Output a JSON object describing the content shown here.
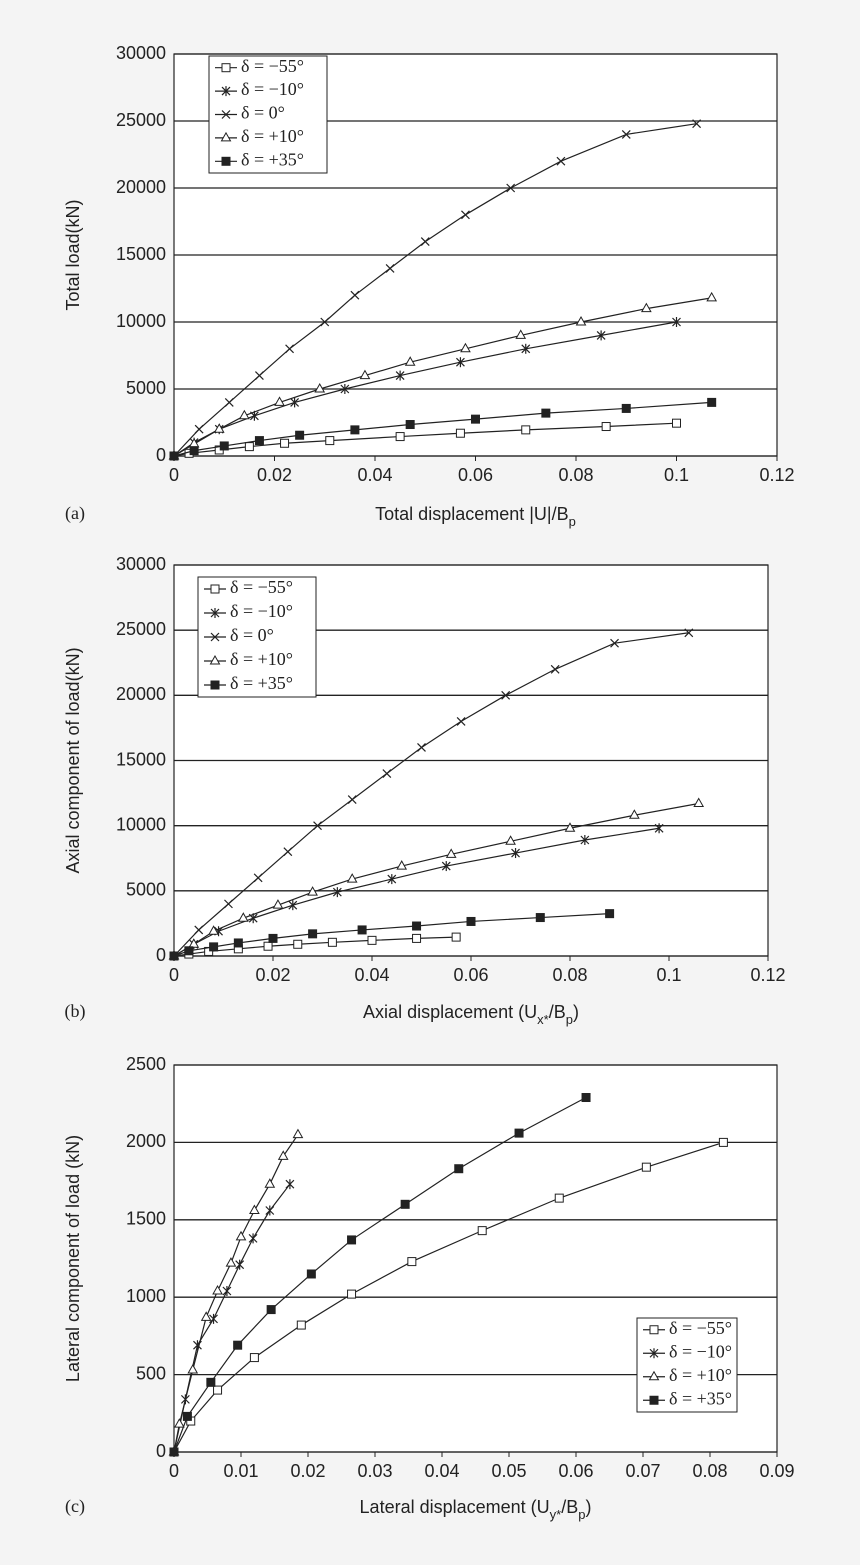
{
  "chart_data": [
    {
      "type": "line",
      "label": "(a)",
      "ylabel": "Total load(kN)",
      "xlabel": [
        {
          "text": "Total displacement |U|/B"
        },
        {
          "text": "p",
          "sub": true
        }
      ],
      "xlim": [
        0,
        0.12
      ],
      "xticks": [
        0,
        0.02,
        0.04,
        0.06,
        0.08,
        0.1,
        0.12
      ],
      "ylim": [
        0,
        30000
      ],
      "yticks": [
        0,
        5000,
        10000,
        15000,
        20000,
        25000,
        30000
      ],
      "grid": true,
      "legend": "upper left",
      "series": [
        {
          "name": "δ = −55°",
          "marker": "square-open",
          "color": "#222222",
          "x": [
            0,
            0.003,
            0.009,
            0.015,
            0.022,
            0.031,
            0.045,
            0.057,
            0.07,
            0.086,
            0.1
          ],
          "values": [
            0,
            200,
            450,
            700,
            950,
            1150,
            1450,
            1700,
            1950,
            2200,
            2450
          ]
        },
        {
          "name": "δ = −10°",
          "marker": "star",
          "color": "#222222",
          "x": [
            0,
            0.004,
            0.009,
            0.016,
            0.024,
            0.034,
            0.045,
            0.057,
            0.07,
            0.085,
            0.1
          ],
          "values": [
            0,
            1000,
            2000,
            3000,
            4000,
            5000,
            6000,
            7000,
            8000,
            9000,
            10000
          ]
        },
        {
          "name": "δ = 0°",
          "marker": "x",
          "color": "#222222",
          "x": [
            0,
            0.005,
            0.011,
            0.017,
            0.023,
            0.03,
            0.036,
            0.043,
            0.05,
            0.058,
            0.067,
            0.077,
            0.09,
            0.104
          ],
          "values": [
            0,
            2000,
            4000,
            6000,
            8000,
            10000,
            12000,
            14000,
            16000,
            18000,
            20000,
            22000,
            24000,
            24800
          ]
        },
        {
          "name": "δ = +10°",
          "marker": "triangle-open",
          "color": "#222222",
          "x": [
            0,
            0.004,
            0.009,
            0.014,
            0.021,
            0.029,
            0.038,
            0.047,
            0.058,
            0.069,
            0.081,
            0.094,
            0.107
          ],
          "values": [
            0,
            900,
            2000,
            3000,
            4000,
            5000,
            6000,
            7000,
            8000,
            9000,
            10000,
            11000,
            11800
          ]
        },
        {
          "name": "δ = +35°",
          "marker": "square-filled",
          "color": "#222222",
          "x": [
            0,
            0.004,
            0.01,
            0.017,
            0.025,
            0.036,
            0.047,
            0.06,
            0.074,
            0.09,
            0.107
          ],
          "values": [
            0,
            400,
            750,
            1150,
            1550,
            1950,
            2350,
            2750,
            3200,
            3550,
            4000
          ]
        }
      ]
    },
    {
      "type": "line",
      "label": "(b)",
      "ylabel": "Axial component of load(kN)",
      "xlabel": [
        {
          "text": "Axial displacement (U"
        },
        {
          "text": "x*",
          "sub": true
        },
        {
          "text": "/B"
        },
        {
          "text": "p",
          "sub": true
        },
        {
          "text": ")"
        }
      ],
      "xlim": [
        0,
        0.12
      ],
      "xticks": [
        0,
        0.02,
        0.04,
        0.06,
        0.08,
        0.1,
        0.12
      ],
      "ylim": [
        0,
        30000
      ],
      "yticks": [
        0,
        5000,
        10000,
        15000,
        20000,
        25000,
        30000
      ],
      "grid": true,
      "legend": "upper left",
      "series": [
        {
          "name": "δ = −55°",
          "marker": "square-open",
          "color": "#222222",
          "x": [
            0,
            0.003,
            0.007,
            0.013,
            0.019,
            0.025,
            0.032,
            0.04,
            0.049,
            0.057
          ],
          "values": [
            0,
            150,
            350,
            550,
            750,
            900,
            1050,
            1200,
            1350,
            1450
          ]
        },
        {
          "name": "δ = −10°",
          "marker": "star",
          "color": "#222222",
          "x": [
            0,
            0.004,
            0.009,
            0.016,
            0.024,
            0.033,
            0.044,
            0.055,
            0.069,
            0.083,
            0.098
          ],
          "values": [
            0,
            900,
            1900,
            2900,
            3900,
            4900,
            5900,
            6900,
            7900,
            8900,
            9800
          ]
        },
        {
          "name": "δ = 0°",
          "marker": "x",
          "color": "#222222",
          "x": [
            0,
            0.005,
            0.011,
            0.017,
            0.023,
            0.029,
            0.036,
            0.043,
            0.05,
            0.058,
            0.067,
            0.077,
            0.089,
            0.104
          ],
          "values": [
            0,
            2000,
            4000,
            6000,
            8000,
            10000,
            12000,
            14000,
            16000,
            18000,
            20000,
            22000,
            24000,
            24800
          ]
        },
        {
          "name": "δ = +10°",
          "marker": "triangle-open",
          "color": "#222222",
          "x": [
            0,
            0.004,
            0.008,
            0.014,
            0.021,
            0.028,
            0.036,
            0.046,
            0.056,
            0.068,
            0.08,
            0.093,
            0.106
          ],
          "values": [
            0,
            900,
            1900,
            2900,
            3900,
            4900,
            5900,
            6900,
            7800,
            8800,
            9800,
            10800,
            11700
          ]
        },
        {
          "name": "δ = +35°",
          "marker": "square-filled",
          "color": "#222222",
          "x": [
            0,
            0.003,
            0.008,
            0.013,
            0.02,
            0.028,
            0.038,
            0.049,
            0.06,
            0.074,
            0.088
          ],
          "values": [
            0,
            400,
            700,
            1000,
            1350,
            1700,
            2000,
            2300,
            2650,
            2950,
            3250
          ]
        }
      ]
    },
    {
      "type": "line",
      "label": "(c)",
      "ylabel": "Lateral component of load (kN)",
      "xlabel": [
        {
          "text": "Lateral displacement (U"
        },
        {
          "text": "y*",
          "sub": true
        },
        {
          "text": "/B"
        },
        {
          "text": "p",
          "sub": true
        },
        {
          "text": ")"
        }
      ],
      "xlim": [
        0,
        0.09
      ],
      "xticks": [
        0,
        0.01,
        0.02,
        0.03,
        0.04,
        0.05,
        0.06,
        0.07,
        0.08,
        0.09
      ],
      "ylim": [
        0,
        2500
      ],
      "yticks": [
        0,
        500,
        1000,
        1500,
        2000,
        2500
      ],
      "grid": true,
      "legend": "lower right",
      "series": [
        {
          "name": "δ = −55°",
          "marker": "square-open",
          "color": "#222222",
          "x": [
            0,
            0.0025,
            0.0065,
            0.012,
            0.019,
            0.0265,
            0.0355,
            0.046,
            0.0575,
            0.0705,
            0.082
          ],
          "values": [
            0,
            200,
            400,
            610,
            820,
            1020,
            1230,
            1430,
            1640,
            1840,
            2000
          ]
        },
        {
          "name": "δ = −10°",
          "marker": "star",
          "color": "#222222",
          "x": [
            0,
            0.0017,
            0.0035,
            0.0059,
            0.0079,
            0.0098,
            0.0118,
            0.0143,
            0.0173
          ],
          "values": [
            0,
            340,
            690,
            860,
            1040,
            1210,
            1380,
            1560,
            1730
          ]
        },
        {
          "name": "δ = +10°",
          "marker": "triangle-open",
          "color": "#222222",
          "x": [
            0,
            0.0008,
            0.0028,
            0.0048,
            0.0065,
            0.0085,
            0.01,
            0.012,
            0.0143,
            0.0163,
            0.0185
          ],
          "values": [
            0,
            180,
            530,
            870,
            1040,
            1220,
            1390,
            1560,
            1730,
            1910,
            2050
          ]
        },
        {
          "name": "δ = +35°",
          "marker": "square-filled",
          "color": "#222222",
          "x": [
            0,
            0.002,
            0.0055,
            0.0095,
            0.0145,
            0.0205,
            0.0265,
            0.0345,
            0.0425,
            0.0515,
            0.0615
          ],
          "values": [
            0,
            230,
            450,
            690,
            920,
            1150,
            1370,
            1600,
            1830,
            2060,
            2290
          ]
        }
      ]
    }
  ]
}
